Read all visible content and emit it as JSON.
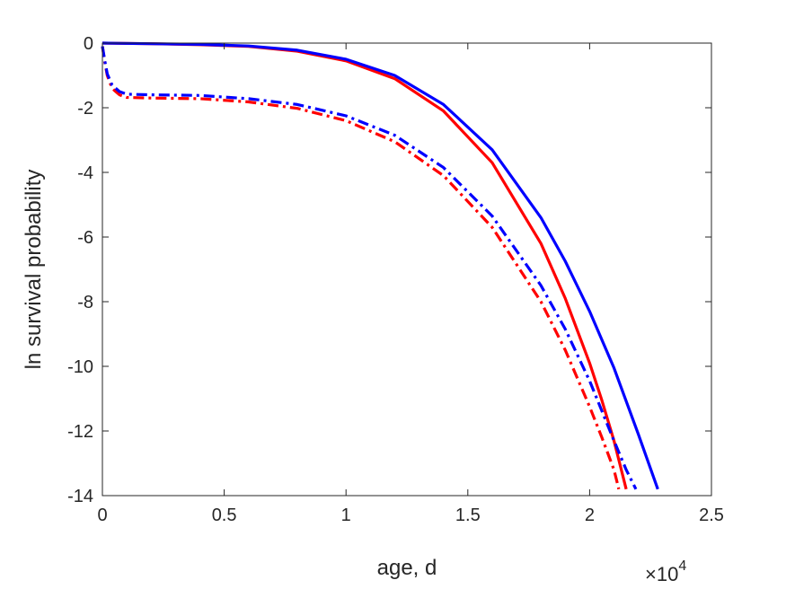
{
  "chart_data": {
    "type": "line",
    "title": "",
    "xlabel": "age, d",
    "ylabel": "ln survival probability",
    "x_multiplier": "×10",
    "x_multiplier_exp": "4",
    "xlim": [
      0,
      25000
    ],
    "ylim": [
      -14,
      0
    ],
    "xticks": [
      0,
      5000,
      10000,
      15000,
      20000,
      25000
    ],
    "xtick_labels": [
      "0",
      "0.5",
      "1",
      "1.5",
      "2",
      "2.5"
    ],
    "yticks": [
      0,
      -2,
      -4,
      -6,
      -8,
      -10,
      -12,
      -14
    ],
    "ytick_labels": [
      "0",
      "-2",
      "-4",
      "-6",
      "-8",
      "-10",
      "-12",
      "-14"
    ],
    "grid": false,
    "series": [
      {
        "color": "#ff0000",
        "style": "solid",
        "x": [
          0,
          2000,
          4000,
          6000,
          8000,
          10000,
          12000,
          14000,
          16000,
          18000,
          19000,
          20000,
          20500,
          21000,
          21500
        ],
        "y": [
          0,
          -0.02,
          -0.05,
          -0.1,
          -0.25,
          -0.55,
          -1.1,
          -2.1,
          -3.7,
          -6.2,
          -7.9,
          -9.9,
          -11.05,
          -12.3,
          -13.8
        ]
      },
      {
        "color": "#0000ff",
        "style": "solid",
        "x": [
          0,
          2000,
          4000,
          6000,
          8000,
          10000,
          12000,
          14000,
          16000,
          18000,
          19000,
          20000,
          21000,
          22000,
          22800
        ],
        "y": [
          0,
          -0.02,
          -0.04,
          -0.09,
          -0.22,
          -0.5,
          -1.0,
          -1.9,
          -3.3,
          -5.4,
          -6.75,
          -8.3,
          -10.05,
          -12.1,
          -13.8
        ]
      },
      {
        "color": "#ff0000",
        "style": "dashdot",
        "x": [
          0,
          100,
          200,
          400,
          700,
          1000,
          2000,
          4000,
          6000,
          8000,
          10000,
          12000,
          14000,
          16000,
          18000,
          19000,
          20000,
          20500,
          21000,
          21200
        ],
        "y": [
          -0.1,
          -0.6,
          -1.0,
          -1.4,
          -1.6,
          -1.68,
          -1.7,
          -1.72,
          -1.82,
          -2.02,
          -2.4,
          -3.05,
          -4.1,
          -5.7,
          -8.0,
          -9.5,
          -11.25,
          -12.2,
          -13.2,
          -13.8
        ]
      },
      {
        "color": "#0000ff",
        "style": "dashdot",
        "x": [
          0,
          100,
          200,
          400,
          700,
          1000,
          2000,
          4000,
          6000,
          8000,
          10000,
          12000,
          14000,
          16000,
          18000,
          19000,
          20000,
          21000,
          21500,
          21900
        ],
        "y": [
          -0.1,
          -0.55,
          -0.95,
          -1.3,
          -1.5,
          -1.58,
          -1.6,
          -1.62,
          -1.72,
          -1.9,
          -2.25,
          -2.85,
          -3.85,
          -5.35,
          -7.5,
          -8.85,
          -10.45,
          -12.3,
          -13.2,
          -13.8
        ]
      }
    ]
  }
}
